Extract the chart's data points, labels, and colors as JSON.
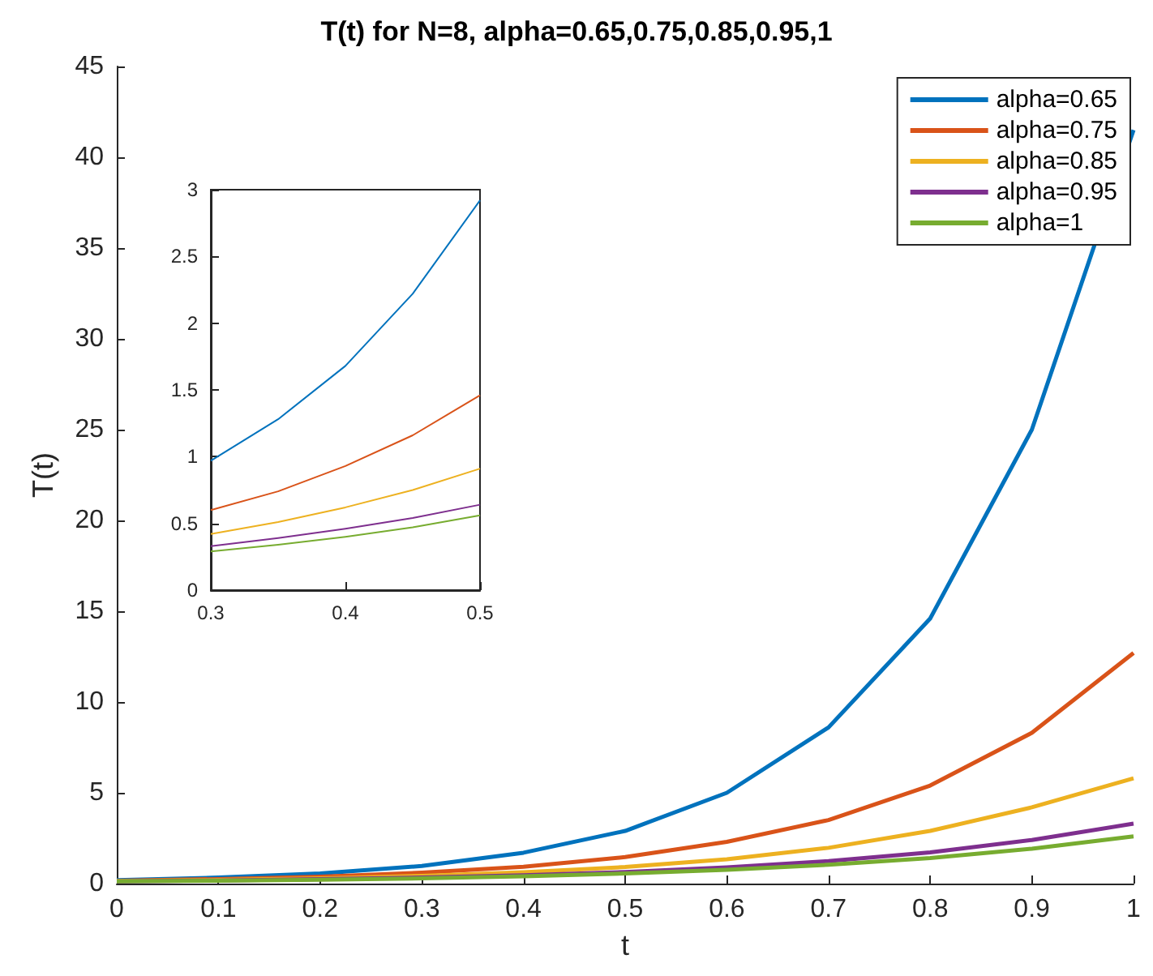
{
  "chart_data": [
    {
      "type": "line",
      "title": "T(t) for N=8, alpha=0.65,0.75,0.85,0.95,1",
      "xlabel": "t",
      "ylabel": "T(t)",
      "x": [
        0,
        0.1,
        0.2,
        0.3,
        0.4,
        0.5,
        0.6,
        0.7,
        0.8,
        0.9,
        1
      ],
      "series": [
        {
          "name": "alpha=0.65",
          "color": "#0072bd",
          "values": [
            0.19,
            0.33,
            0.56,
            0.97,
            1.7,
            2.9,
            5,
            8.6,
            14.6,
            25,
            41.5
          ]
        },
        {
          "name": "alpha=0.75",
          "color": "#d95319",
          "values": [
            0.16,
            0.25,
            0.38,
            0.6,
            0.93,
            1.46,
            2.3,
            3.5,
            5.4,
            8.3,
            12.7
          ]
        },
        {
          "name": "alpha=0.85",
          "color": "#edb120",
          "values": [
            0.14,
            0.2,
            0.29,
            0.42,
            0.62,
            0.91,
            1.34,
            1.97,
            2.9,
            4.2,
            5.8
          ]
        },
        {
          "name": "alpha=0.95",
          "color": "#7e2f8e",
          "values": [
            0.12,
            0.17,
            0.24,
            0.33,
            0.46,
            0.64,
            0.89,
            1.24,
            1.72,
            2.4,
            3.3
          ]
        },
        {
          "name": "alpha=1",
          "color": "#77ac30",
          "values": [
            0.12,
            0.16,
            0.21,
            0.29,
            0.4,
            0.56,
            0.76,
            1.04,
            1.41,
            1.92,
            2.6
          ]
        }
      ],
      "xlim": [
        0,
        1
      ],
      "ylim": [
        0,
        45
      ],
      "xticks": [
        0,
        0.1,
        0.2,
        0.3,
        0.4,
        0.5,
        0.6,
        0.7,
        0.8,
        0.9,
        1
      ],
      "yticks": [
        0,
        5,
        10,
        15,
        20,
        25,
        30,
        35,
        40,
        45
      ],
      "legend": "top right",
      "marker": "none"
    },
    {
      "type": "line",
      "x": [
        0.3,
        0.35,
        0.4,
        0.45,
        0.5
      ],
      "series": [
        {
          "color": "#0072bd",
          "values": [
            0.97,
            1.28,
            1.68,
            2.22,
            2.92
          ]
        },
        {
          "color": "#d95319",
          "values": [
            0.6,
            0.74,
            0.93,
            1.16,
            1.46
          ]
        },
        {
          "color": "#edb120",
          "values": [
            0.42,
            0.51,
            0.62,
            0.75,
            0.91
          ]
        },
        {
          "color": "#7e2f8e",
          "values": [
            0.33,
            0.39,
            0.46,
            0.54,
            0.64
          ]
        },
        {
          "color": "#77ac30",
          "values": [
            0.29,
            0.34,
            0.4,
            0.47,
            0.56
          ]
        }
      ],
      "xlim": [
        0.3,
        0.5
      ],
      "ylim": [
        0,
        3
      ],
      "xticks": [
        0.3,
        0.4,
        0.5
      ],
      "yticks": [
        0,
        0.5,
        1,
        1.5,
        2,
        2.5,
        3
      ],
      "marker": "none"
    }
  ]
}
